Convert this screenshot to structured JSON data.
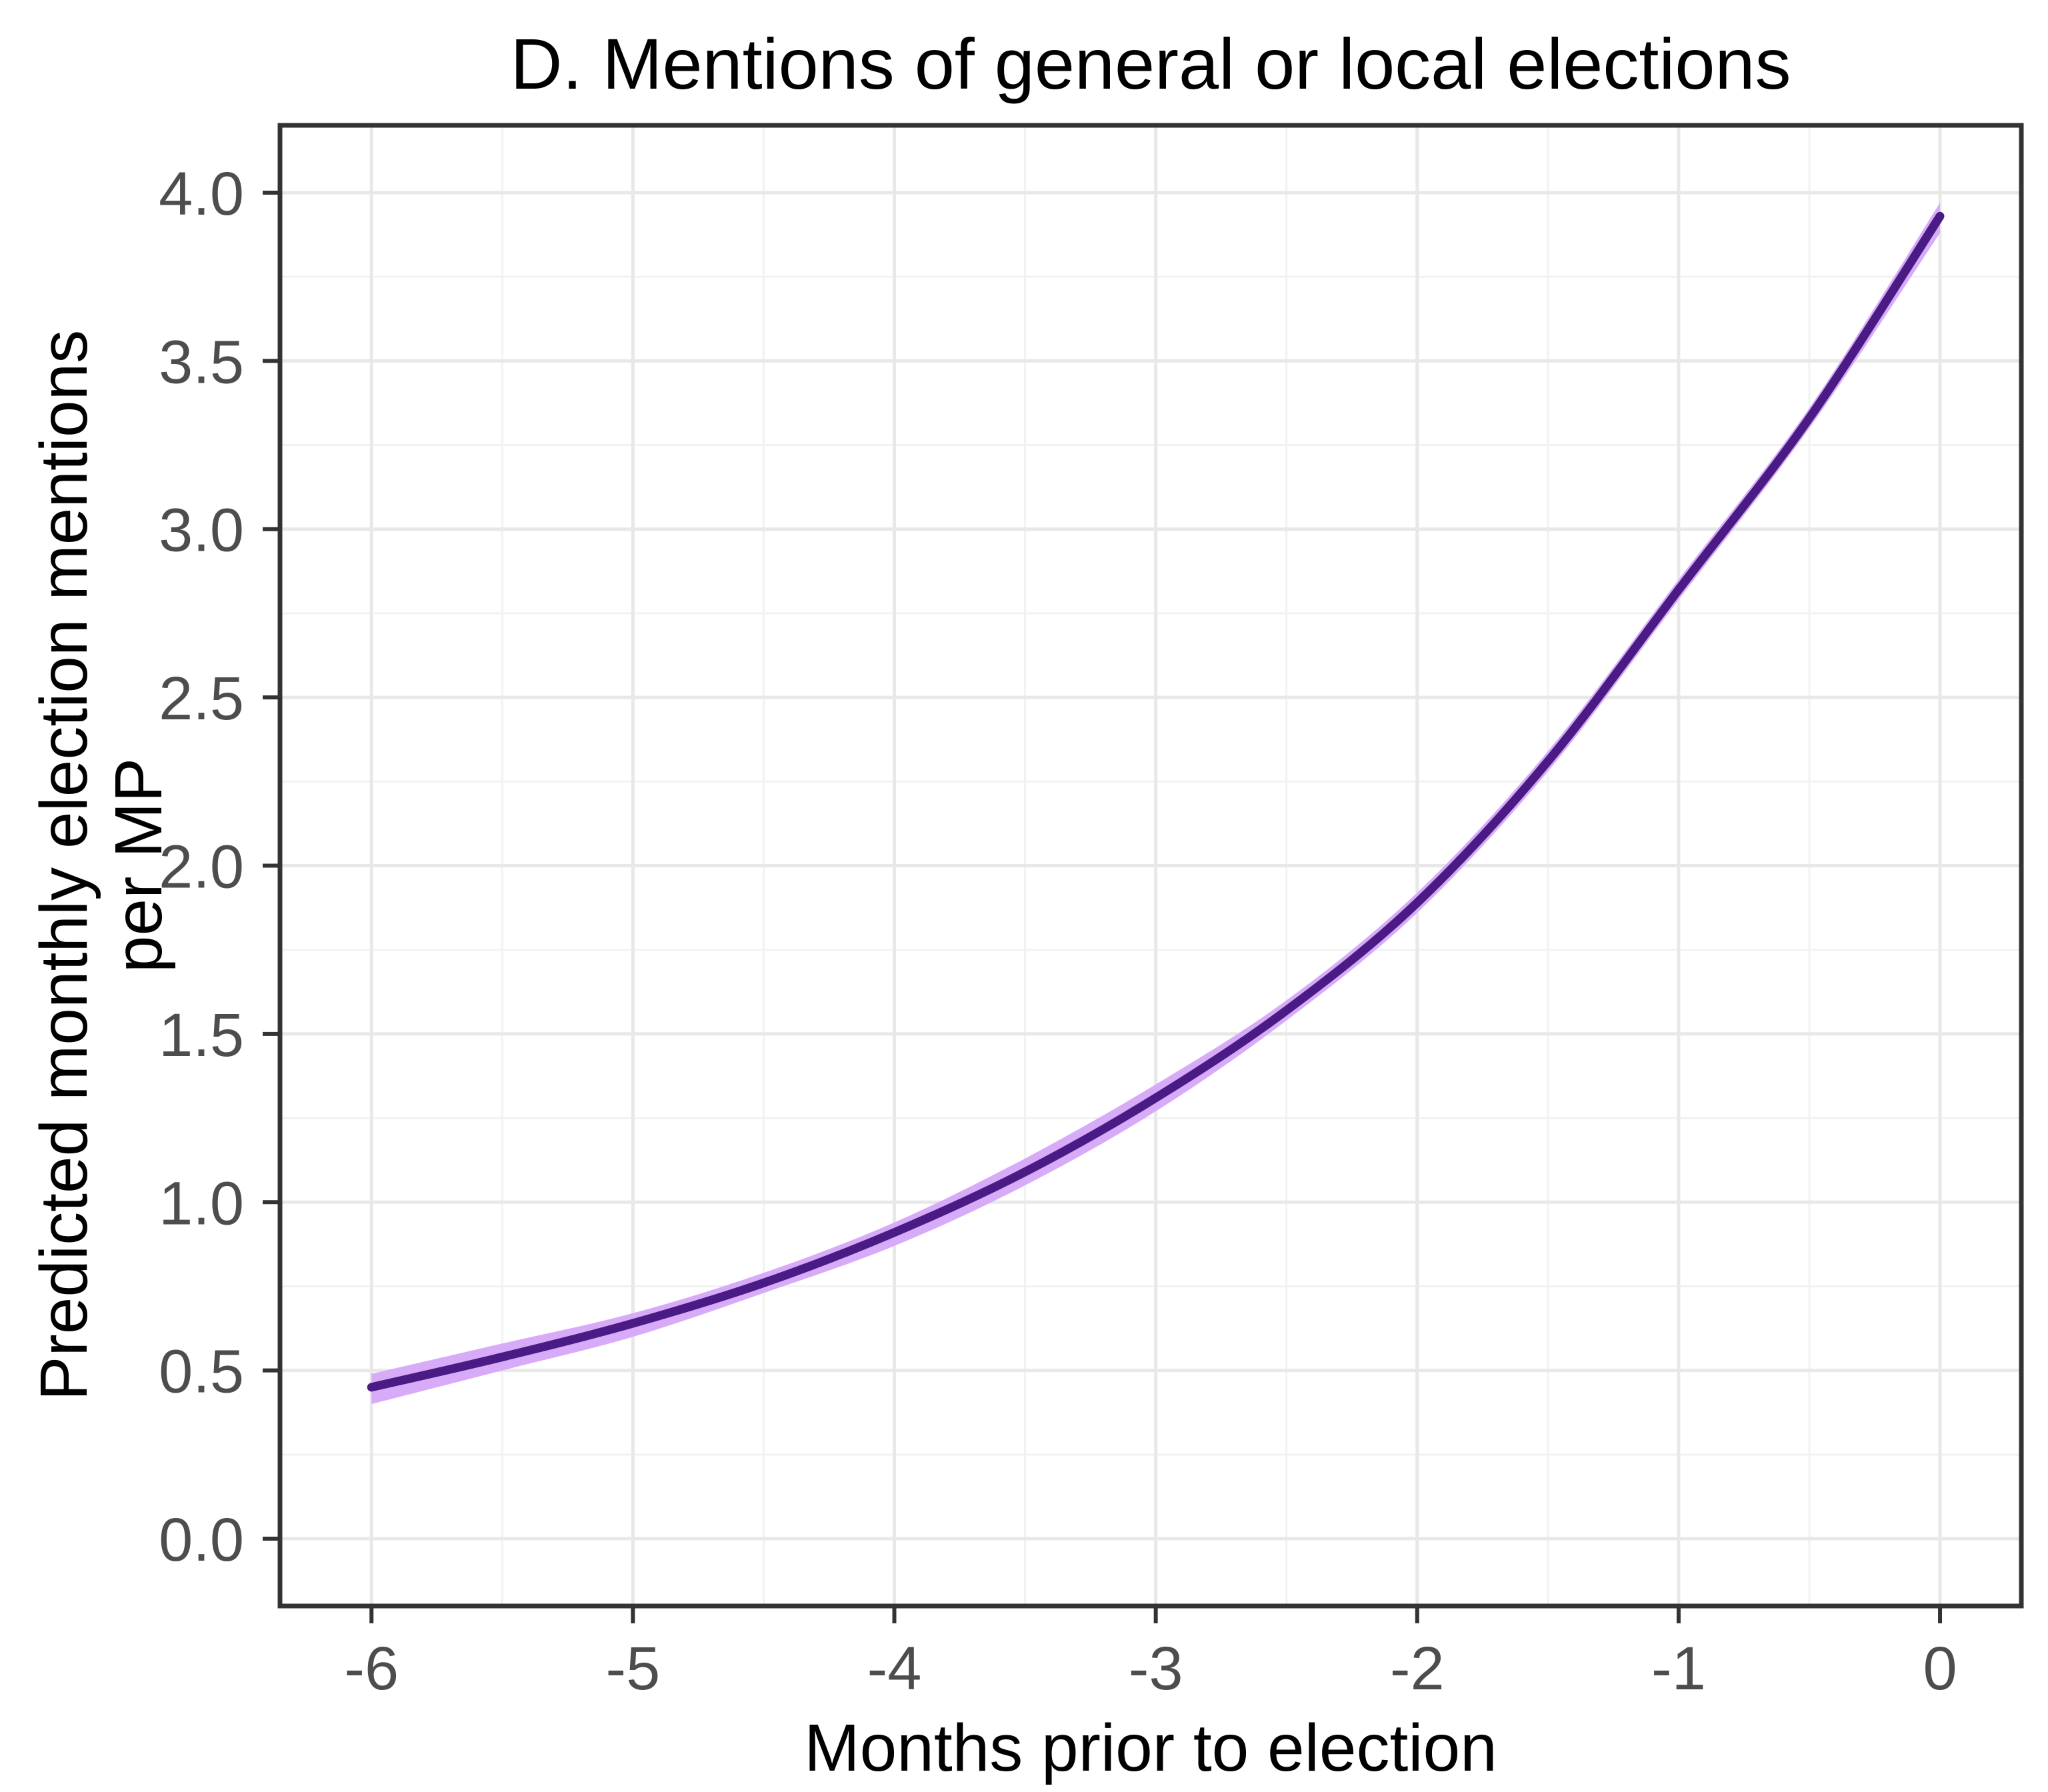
{
  "title": "D. Mentions of general or local elections",
  "chart_data": {
    "type": "line",
    "title": "D. Mentions of general or local elections",
    "xlabel": "Months prior to election",
    "ylabel": "Predicted monthly election mentions per MP",
    "ylabel_lines": [
      "Predicted monthly election mentions",
      "per MP"
    ],
    "x": [
      -6,
      -5.5,
      -5,
      -4.5,
      -4,
      -3.5,
      -3,
      -2.5,
      -2,
      -1.5,
      -1,
      -0.5,
      0
    ],
    "series": [
      {
        "name": "predicted-mentions",
        "values": [
          0.45,
          0.54,
          0.64,
          0.76,
          0.91,
          1.09,
          1.31,
          1.57,
          1.89,
          2.31,
          2.82,
          3.33,
          3.93
        ]
      }
    ],
    "ribbon": {
      "lower": [
        0.4,
        0.5,
        0.6,
        0.73,
        0.87,
        1.05,
        1.27,
        1.54,
        1.86,
        2.28,
        2.79,
        3.3,
        3.88
      ],
      "upper": [
        0.49,
        0.58,
        0.67,
        0.79,
        0.94,
        1.13,
        1.35,
        1.6,
        1.92,
        2.34,
        2.85,
        3.36,
        3.97
      ]
    },
    "x_ticks": [
      "-6",
      "-5",
      "-4",
      "-3",
      "-2",
      "-1",
      "0"
    ],
    "x_tick_values": [
      -6,
      -5,
      -4,
      -3,
      -2,
      -1,
      0
    ],
    "y_ticks": [
      "0.0",
      "0.5",
      "1.0",
      "1.5",
      "2.0",
      "2.5",
      "3.0",
      "3.5",
      "4.0"
    ],
    "y_tick_values": [
      0,
      0.5,
      1,
      1.5,
      2,
      2.5,
      3,
      3.5,
      4
    ],
    "x_minor_ticks": [
      -5.5,
      -4.5,
      -3.5,
      -2.5,
      -1.5,
      -0.5
    ],
    "y_minor_ticks": [
      0.25,
      0.75,
      1.25,
      1.75,
      2.25,
      2.75,
      3.25,
      3.75
    ],
    "xlim": [
      -6.35,
      0.311
    ],
    "ylim": [
      -0.2,
      4.2
    ],
    "grid": "major+minor",
    "legend": "none",
    "colors": {
      "line": "#4A1A85",
      "ribbon": "#D7ABF8",
      "grid_major": "#E8E8E8",
      "grid_minor": "#F2F2F2",
      "panel_border": "#333333",
      "tick_mark": "#333333",
      "tick_text": "#4D4D4D",
      "text": "#000000",
      "background": "#FFFFFF"
    }
  }
}
